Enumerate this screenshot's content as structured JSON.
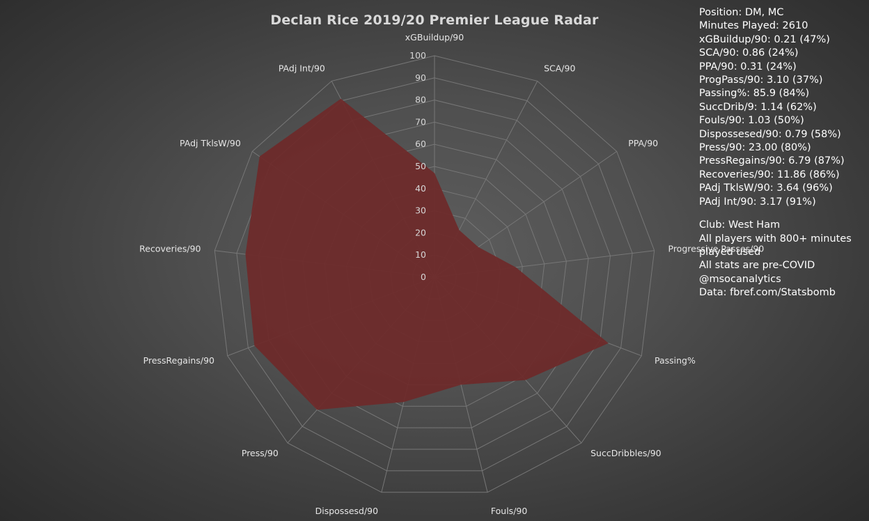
{
  "chart_data": {
    "type": "radar",
    "title": "Declan Rice 2019/20 Premier League Radar",
    "axes": [
      "xGBuildup/90",
      "SCA/90",
      "PPA/90",
      "Progressive Passes/90",
      "Passing%",
      "SuccDribbles/90",
      "Fouls/90",
      "Dispossesd/90",
      "Press/90",
      "PressRegains/90",
      "Recoveries/90",
      "PAdj TklsW/90",
      "PAdj Int/90"
    ],
    "series": [
      {
        "values": [
          47,
          24,
          24,
          37,
          84,
          62,
          50,
          58,
          80,
          87,
          86,
          96,
          91
        ]
      }
    ],
    "rlim": [
      0,
      100
    ],
    "ticks": [
      "0",
      "10",
      "20",
      "30",
      "40",
      "50",
      "60",
      "70",
      "80",
      "90",
      "100"
    ],
    "grid": true,
    "legend": "none",
    "colors": {
      "fill": "#6e2a2a",
      "grid": "#777777",
      "background": "#4f4f4f"
    }
  },
  "info": {
    "stats": [
      "Position: DM, MC",
      "Minutes Played: 2610",
      "xGBuildup/90: 0.21 (47%)",
      "SCA/90: 0.86 (24%)",
      "PPA/90: 0.31 (24%)",
      "ProgPass/90: 3.10 (37%)",
      "Passing%: 85.9 (84%)",
      "SuccDrib/9: 1.14 (62%)",
      "Fouls/90: 1.03 (50%)",
      "Dispossesed/90: 0.79 (58%)",
      "Press/90: 23.00 (80%)",
      "PressRegains/90: 6.79 (87%)",
      "Recoveries/90: 11.86 (86%)",
      "PAdj TklsW/90: 3.64 (96%)",
      "PAdj Int/90: 3.17 (91%)"
    ],
    "notes": [
      "Club: West Ham",
      "All players with 800+ minutes played used",
      "All stats are pre-COVID",
      "@msocanalytics",
      "Data: fbref.com/Statsbomb"
    ]
  }
}
